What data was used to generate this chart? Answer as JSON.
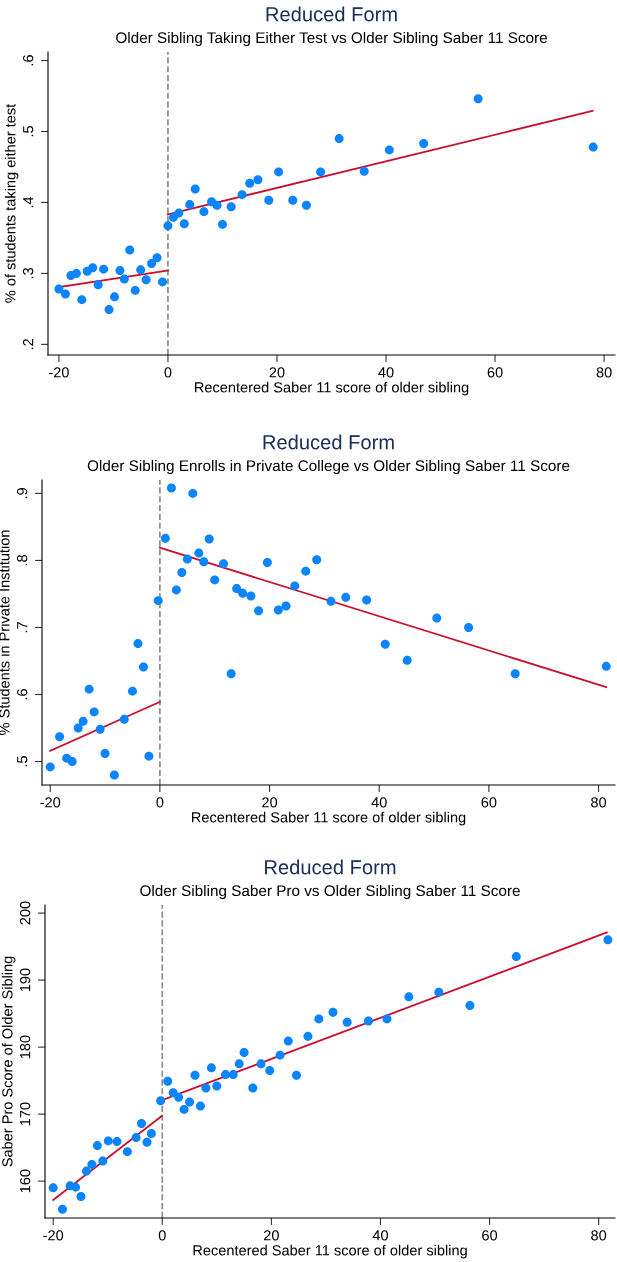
{
  "chart_data": [
    {
      "type": "scatter",
      "title": "Reduced Form",
      "subtitle": "Older Sibling Taking Either Test vs Older Sibling Saber 11 Score",
      "xlabel": "Recentered Saber 11 score of older sibling",
      "ylabel": "% of students taking either test",
      "xlim": [
        -22,
        82
      ],
      "ylim": [
        0.185,
        0.612
      ],
      "xticks": [
        -20,
        0,
        20,
        40,
        60,
        80
      ],
      "yticks": [
        {
          "value": 0.2,
          "label": ".2"
        },
        {
          "value": 0.3,
          "label": ".3"
        },
        {
          "value": 0.4,
          "label": ".4"
        },
        {
          "value": 0.5,
          "label": ".5"
        },
        {
          "value": 0.6,
          "label": ".6"
        }
      ],
      "grid": false,
      "legend": false,
      "ref_lines": [
        {
          "axis": "x",
          "value": 0,
          "color": "#8c8c8c",
          "line_style": "dashed"
        }
      ],
      "series": [
        {
          "marker": "circle",
          "color": "#0a84ff",
          "x": [
            -20,
            -18.8,
            -17.8,
            -16.8,
            -15.8,
            -14.8,
            -13.8,
            -12.8,
            -11.8,
            -10.8,
            -9.8,
            -8.8,
            -8,
            -7,
            -6,
            -5,
            -4,
            -3,
            -2,
            -1,
            0,
            1,
            2,
            3,
            4,
            5,
            6.6,
            8,
            9,
            10,
            11.6,
            13.6,
            15,
            16.5,
            18.5,
            20.3,
            22.9,
            25.4,
            28,
            31.4,
            36,
            40.6,
            46.9,
            56.9,
            78
          ],
          "values": [
            0.278,
            0.271,
            0.297,
            0.3,
            0.263,
            0.303,
            0.308,
            0.284,
            0.306,
            0.249,
            0.267,
            0.304,
            0.292,
            0.333,
            0.276,
            0.305,
            0.291,
            0.314,
            0.322,
            0.288,
            0.367,
            0.379,
            0.385,
            0.37,
            0.397,
            0.419,
            0.387,
            0.401,
            0.396,
            0.369,
            0.394,
            0.411,
            0.427,
            0.432,
            0.403,
            0.443,
            0.403,
            0.396,
            0.443,
            0.49,
            0.444,
            0.474,
            0.483,
            0.546,
            0.478
          ]
        },
        {
          "type": "line",
          "color": "#c8102e",
          "x": [
            -19.8,
            0
          ],
          "values": [
            0.281,
            0.304
          ]
        },
        {
          "type": "line",
          "color": "#c8102e",
          "x": [
            0,
            77.9
          ],
          "values": [
            0.383,
            0.529
          ]
        }
      ]
    },
    {
      "type": "scatter",
      "title": "Reduced Form",
      "subtitle": "Older Sibling Enrolls in Private College vs Older Sibling Saber 11 Score",
      "xlabel": "Recentered Saber 11 score of older sibling",
      "ylabel": "% Students in Private Institution",
      "xlim": [
        -21.5,
        83
      ],
      "ylim": [
        0.465,
        0.92
      ],
      "xticks": [
        -20,
        0,
        20,
        40,
        60,
        80
      ],
      "yticks": [
        {
          "value": 0.5,
          "label": ".5"
        },
        {
          "value": 0.6,
          "label": ".6"
        },
        {
          "value": 0.7,
          "label": ".7"
        },
        {
          "value": 0.8,
          "label": ".8"
        },
        {
          "value": 0.9,
          "label": ".9"
        }
      ],
      "grid": false,
      "legend": false,
      "ref_lines": [
        {
          "axis": "x",
          "value": 0,
          "color": "#8c8c8c",
          "line_style": "dashed"
        }
      ],
      "series": [
        {
          "marker": "circle",
          "color": "#0a84ff",
          "x": [
            -20,
            -18.3,
            -17,
            -16,
            -14.9,
            -14,
            -12.9,
            -12,
            -10.9,
            -10,
            -8.3,
            -6.5,
            -5,
            -4,
            -3,
            -2,
            -0.3,
            1,
            2.1,
            3,
            4,
            5,
            6,
            7.1,
            8,
            9,
            10,
            11.6,
            13,
            14,
            15.1,
            16.6,
            18,
            19.6,
            21.6,
            23,
            24.6,
            26.6,
            28.6,
            31.2,
            33.9,
            37.7,
            41.1,
            45.1,
            50.5,
            56.3,
            64.8,
            81.4
          ],
          "values": [
            0.492,
            0.537,
            0.505,
            0.5,
            0.55,
            0.56,
            0.608,
            0.574,
            0.548,
            0.512,
            0.48,
            0.563,
            0.605,
            0.676,
            0.641,
            0.508,
            0.74,
            0.833,
            0.908,
            0.756,
            0.782,
            0.802,
            0.9,
            0.811,
            0.798,
            0.832,
            0.771,
            0.795,
            0.631,
            0.758,
            0.751,
            0.747,
            0.725,
            0.797,
            0.726,
            0.732,
            0.762,
            0.784,
            0.801,
            0.739,
            0.745,
            0.741,
            0.675,
            0.651,
            0.714,
            0.7,
            0.631,
            0.642
          ]
        },
        {
          "type": "line",
          "color": "#c8102e",
          "x": [
            -20,
            0
          ],
          "values": [
            0.516,
            0.589
          ]
        },
        {
          "type": "line",
          "color": "#c8102e",
          "x": [
            0,
            81.4
          ],
          "values": [
            0.819,
            0.611
          ]
        }
      ]
    },
    {
      "type": "scatter",
      "title": "Reduced Form",
      "subtitle": "Older Sibling Saber Pro vs Older Sibling Saber 11 Score",
      "xlabel": "Recentered Saber 11 score of older sibling",
      "ylabel": "Saber Pro Score of Older Sibling",
      "xlim": [
        -21.5,
        83
      ],
      "ylim": [
        154.5,
        201.2
      ],
      "xticks": [
        -20,
        0,
        20,
        40,
        60,
        80
      ],
      "yticks": [
        160,
        170,
        180,
        190,
        200
      ],
      "grid": false,
      "legend": false,
      "ref_lines": [
        {
          "axis": "x",
          "value": 0,
          "color": "#8c8c8c",
          "line_style": "dashed"
        }
      ],
      "series": [
        {
          "marker": "circle",
          "color": "#0a84ff",
          "x": [
            -20,
            -18.3,
            -16.9,
            -15.9,
            -14.9,
            -13.9,
            -12.9,
            -11.9,
            -10.9,
            -9.9,
            -8.3,
            -6.4,
            -4.8,
            -3.8,
            -2.8,
            -2,
            -0.3,
            1,
            2,
            3,
            4,
            5,
            6,
            7,
            8,
            9,
            10,
            11.6,
            13,
            14.1,
            15,
            16.6,
            18.1,
            19.7,
            21.6,
            23.1,
            24.6,
            26.7,
            28.7,
            31.3,
            33.9,
            37.8,
            41.2,
            45.2,
            50.7,
            56.4,
            64.9,
            81.7
          ],
          "values": [
            159.0,
            155.8,
            159.3,
            159.1,
            157.7,
            161.5,
            162.5,
            165.3,
            163.0,
            166.0,
            165.9,
            164.4,
            166.5,
            168.6,
            165.8,
            167.1,
            172.0,
            174.9,
            173.2,
            172.5,
            170.7,
            171.8,
            175.8,
            171.2,
            173.9,
            176.9,
            174.2,
            175.9,
            175.9,
            177.5,
            179.2,
            173.9,
            177.5,
            176.5,
            178.8,
            180.9,
            175.8,
            181.6,
            184.2,
            185.2,
            183.7,
            183.9,
            184.2,
            187.5,
            188.2,
            186.2,
            193.5,
            196.0
          ]
        },
        {
          "type": "line",
          "color": "#c8102e",
          "x": [
            -20,
            -0.1
          ],
          "values": [
            157.2,
            169.7
          ]
        },
        {
          "type": "line",
          "color": "#c8102e",
          "x": [
            0,
            81.5
          ],
          "values": [
            172.1,
            197.1
          ]
        }
      ]
    }
  ]
}
